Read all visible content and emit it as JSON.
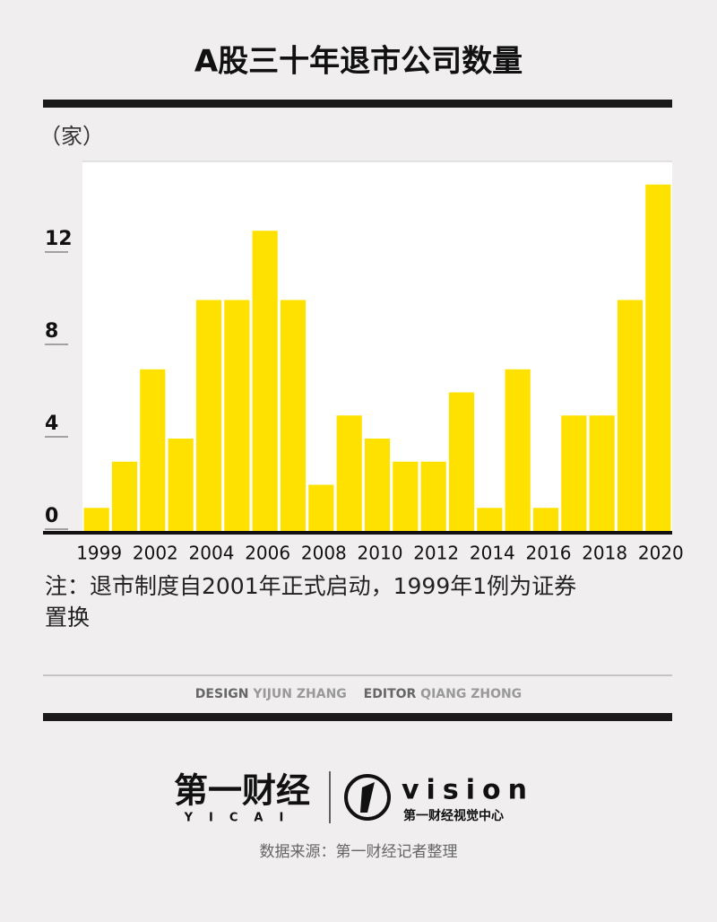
{
  "chart_data": {
    "type": "bar",
    "title": "A股三十年退市公司数量",
    "y_label": "（家）",
    "categories": [
      "1999",
      null,
      "2002",
      null,
      "2004",
      null,
      "2006",
      null,
      "2008",
      null,
      "2010",
      null,
      "2012",
      null,
      "2014",
      null,
      "2016",
      null,
      "2018",
      null,
      "2020"
    ],
    "values": [
      1,
      3,
      7,
      4,
      10,
      10,
      13,
      10,
      2,
      5,
      4,
      3,
      3,
      6,
      1,
      7,
      1,
      5,
      5,
      10,
      15
    ],
    "color": "#ffe100",
    "ylim": [
      0,
      16
    ],
    "yticks": [
      0,
      4,
      8,
      12
    ],
    "note": "注：退市制度自2001年正式启动，1999年1例为证券置换"
  },
  "credits": {
    "design_label": "DESIGN",
    "designer": "YIJUN ZHANG",
    "editor_label": "EDITOR",
    "editor": "QIANG ZHONG"
  },
  "logos": {
    "brand": "第一财经",
    "brand_en": "YICAI",
    "vision": "vision",
    "vision_sub": "第一财经视觉中心"
  },
  "source": "数据来源：第一财经记者整理"
}
